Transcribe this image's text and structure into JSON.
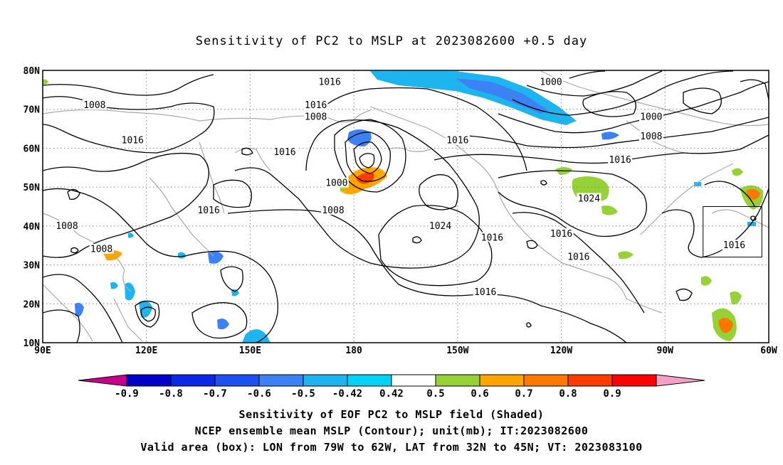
{
  "title": "Sensitivity of PC2 to MSLP at 2023082600 +0.5 day",
  "map": {
    "lon_range": [
      90,
      300
    ],
    "lat_range": [
      10,
      80
    ],
    "lat_labels": [
      "80N",
      "70N",
      "60N",
      "50N",
      "40N",
      "30N",
      "20N",
      "10N"
    ],
    "lon_labels": [
      "90E",
      "120E",
      "150E",
      "180",
      "150W",
      "120W",
      "90W",
      "60W"
    ],
    "contour_labels": [
      {
        "text": "1016",
        "lon": 173,
        "lat": 77
      },
      {
        "text": "1000",
        "lon": 237,
        "lat": 77
      },
      {
        "text": "1008",
        "lon": 105,
        "lat": 71
      },
      {
        "text": "1016",
        "lon": 169,
        "lat": 71
      },
      {
        "text": "1008",
        "lon": 169,
        "lat": 68
      },
      {
        "text": "1000",
        "lon": 266,
        "lat": 68
      },
      {
        "text": "1016",
        "lon": 116,
        "lat": 62
      },
      {
        "text": "1008",
        "lon": 266,
        "lat": 63
      },
      {
        "text": "1016",
        "lon": 210,
        "lat": 62
      },
      {
        "text": "1016",
        "lon": 160,
        "lat": 59
      },
      {
        "text": "1016",
        "lon": 257,
        "lat": 57
      },
      {
        "text": "1000",
        "lon": 175,
        "lat": 51
      },
      {
        "text": "1024",
        "lon": 248,
        "lat": 47
      },
      {
        "text": "1008",
        "lon": 174,
        "lat": 44
      },
      {
        "text": "1016",
        "lon": 138,
        "lat": 44
      },
      {
        "text": "1024",
        "lon": 205,
        "lat": 40
      },
      {
        "text": "1008",
        "lon": 97,
        "lat": 40
      },
      {
        "text": "1016",
        "lon": 220,
        "lat": 37
      },
      {
        "text": "1016",
        "lon": 240,
        "lat": 38
      },
      {
        "text": "1016",
        "lon": 290,
        "lat": 35
      },
      {
        "text": "1008",
        "lon": 107,
        "lat": 34
      },
      {
        "text": "1016",
        "lon": 245,
        "lat": 32
      },
      {
        "text": "1016",
        "lon": 218,
        "lat": 23
      }
    ],
    "box": {
      "lon": [
        281,
        298
      ],
      "lat": [
        32,
        45
      ]
    }
  },
  "colorbar": {
    "labels": [
      "-0.9",
      "-0.8",
      "-0.7",
      "-0.6",
      "-0.5",
      "-0.42",
      "0.42",
      "0.5",
      "0.6",
      "0.7",
      "0.8",
      "0.9"
    ],
    "colors": [
      "#c4008c",
      "#0000c8",
      "#0a28e6",
      "#1e50f0",
      "#3c82f5",
      "#1eb4f0",
      "#00d2f5",
      "#ffffff",
      "#96d237",
      "#ffa500",
      "#ff7800",
      "#ff3c00",
      "#ff0000",
      "#f5a0c8"
    ]
  },
  "captions": [
    "Sensitivity of EOF PC2 to MSLP field (Shaded)",
    "NCEP ensemble mean MSLP (Contour); unit(mb); IT:2023082600",
    "Valid area (box): LON from 79W to 62W, LAT from 32N to 45N; VT: 2023083100"
  ]
}
